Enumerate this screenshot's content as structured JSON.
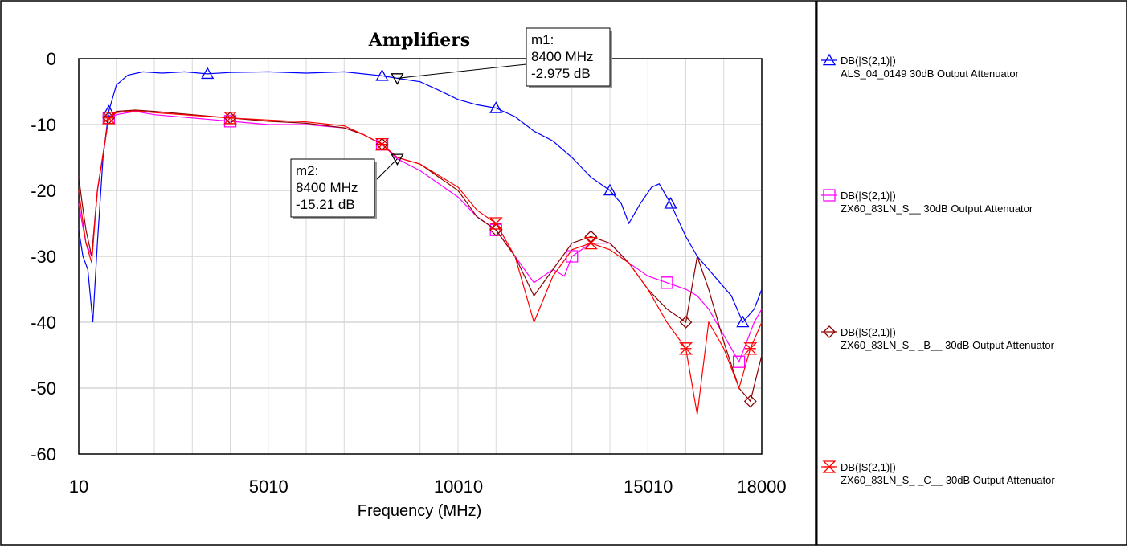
{
  "chart_data": {
    "type": "line",
    "title": "Amplifiers",
    "xlabel": "Frequency (MHz)",
    "ylabel": "",
    "xlim": [
      10,
      18000
    ],
    "ylim": [
      -60,
      0
    ],
    "x_ticks": [
      "10",
      "5010",
      "10010",
      "15010",
      "18000"
    ],
    "y_ticks": [
      "0",
      "-10",
      "-20",
      "-30",
      "-40",
      "-50",
      "-60"
    ],
    "grid": true,
    "legend_position": "right",
    "series": [
      {
        "name": "DB(|S(2,1)|)",
        "description": "ALS_04_0149 30dB Output Attenuator",
        "color": "#0000ff",
        "marker": "triangle-up",
        "x": [
          10,
          120,
          250,
          380,
          500,
          650,
          800,
          1000,
          1300,
          1700,
          2200,
          2800,
          3400,
          4000,
          5000,
          6000,
          7000,
          7500,
          8000,
          8400,
          9000,
          9500,
          10000,
          10500,
          11000,
          11500,
          12000,
          12500,
          13000,
          13500,
          14000,
          14300,
          14500,
          14800,
          15100,
          15300,
          15600,
          16000,
          16300,
          16600,
          16900,
          17200,
          17500,
          17800,
          18000
        ],
        "y": [
          -26,
          -30,
          -32,
          -40,
          -28,
          -15,
          -8,
          -4,
          -2.5,
          -2,
          -2.2,
          -2.0,
          -2.3,
          -2.1,
          -2.0,
          -2.2,
          -2.0,
          -2.3,
          -2.6,
          -2.975,
          -3.5,
          -4.8,
          -6.2,
          -7.0,
          -7.5,
          -8.8,
          -11,
          -12.5,
          -15,
          -18,
          -20,
          -22,
          -25,
          -22,
          -19.5,
          -19,
          -22,
          -27,
          -30,
          -32,
          -34,
          -36,
          -40,
          -38,
          -35
        ]
      },
      {
        "name": "DB(|S(2,1)|)",
        "description": "ZX60_83LN_S__ 30dB Output Attenuator",
        "color": "#ff00ff",
        "marker": "square",
        "x": [
          10,
          100,
          200,
          350,
          500,
          800,
          1000,
          1500,
          2000,
          3000,
          4000,
          5000,
          6000,
          7000,
          7500,
          8000,
          8400,
          9000,
          10000,
          10500,
          11000,
          11500,
          12000,
          12500,
          12800,
          13000,
          13500,
          14000,
          14500,
          15000,
          15500,
          16000,
          16300,
          16600,
          17000,
          17400,
          17800,
          18000
        ],
        "y": [
          -22,
          -25,
          -28,
          -30,
          -20,
          -9,
          -8.5,
          -8.0,
          -8.5,
          -9.0,
          -9.5,
          -10,
          -10,
          -10.5,
          -11.5,
          -13,
          -15.21,
          -17,
          -21,
          -24,
          -26,
          -30,
          -34,
          -32,
          -33,
          -30,
          -28,
          -28,
          -31,
          -33,
          -34,
          -35,
          -36,
          -38,
          -42,
          -46,
          -40,
          -38
        ]
      },
      {
        "name": "DB(|S(2,1)|)",
        "description": "ZX60_83LN_S_ _B__ 30dB Output Attenuator",
        "color": "#8b0000",
        "marker": "diamond",
        "x": [
          10,
          100,
          200,
          350,
          500,
          800,
          1000,
          1500,
          2000,
          3000,
          4000,
          5000,
          6000,
          7000,
          7500,
          8000,
          8400,
          9000,
          10000,
          10500,
          11000,
          11500,
          12000,
          12500,
          13000,
          13500,
          14000,
          14500,
          15000,
          15500,
          16000,
          16300,
          16600,
          17000,
          17400,
          17700,
          18000
        ],
        "y": [
          -18,
          -22,
          -26,
          -30,
          -20,
          -9,
          -8.0,
          -7.8,
          -8.0,
          -8.5,
          -9.0,
          -9.5,
          -9.8,
          -10.5,
          -11.5,
          -13,
          -15,
          -16,
          -20,
          -24,
          -26,
          -30,
          -36,
          -32,
          -28,
          -27,
          -28,
          -31,
          -35,
          -38,
          -40,
          -30,
          -35,
          -43,
          -50,
          -52,
          -45
        ]
      },
      {
        "name": "DB(|S(2,1)|)",
        "description": "ZX60_83LN_S_ _C__ 30dB Output Attenuator",
        "color": "#ff0000",
        "marker": "hourglass",
        "x": [
          10,
          100,
          200,
          350,
          500,
          800,
          1000,
          1500,
          2000,
          3000,
          4000,
          5000,
          6000,
          7000,
          7500,
          8000,
          8400,
          9000,
          10000,
          10500,
          11000,
          11500,
          12000,
          12500,
          13000,
          13500,
          14000,
          14500,
          15000,
          15500,
          16000,
          16300,
          16600,
          17000,
          17400,
          17700,
          18000
        ],
        "y": [
          -20,
          -24,
          -28,
          -31,
          -20,
          -9,
          -8.2,
          -7.9,
          -8.2,
          -8.6,
          -9.0,
          -9.3,
          -9.6,
          -10.2,
          -11.5,
          -13,
          -15,
          -16,
          -19.5,
          -23,
          -25,
          -30,
          -40,
          -33,
          -29,
          -28,
          -29,
          -31,
          -35,
          -40,
          -44,
          -54,
          -40,
          -44,
          -50,
          -44,
          -40
        ]
      }
    ],
    "markers": [
      {
        "label": "m1:",
        "freq": "8400 MHz",
        "value": "-2.975 dB",
        "x": 8400,
        "y": -2.975
      },
      {
        "label": "m2:",
        "freq": "8400 MHz",
        "value": "-15.21 dB",
        "x": 8400,
        "y": -15.21
      }
    ]
  }
}
